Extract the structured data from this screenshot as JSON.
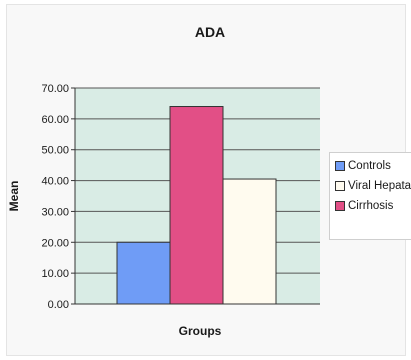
{
  "chart_data": {
    "type": "bar",
    "title": "ADA",
    "xlabel": "Groups",
    "ylabel": "Mean",
    "categories": [
      "Controls",
      "Viral Hepatatis",
      "Cirrhosis"
    ],
    "values": [
      20.0,
      64.0,
      40.5
    ],
    "colors": [
      "#6f9cf6",
      "#e24f86",
      "#fffbef"
    ],
    "ylim": [
      0,
      70
    ],
    "yticks": [
      "0.00",
      "10.00",
      "20.00",
      "30.00",
      "40.00",
      "50.00",
      "60.00",
      "70.00"
    ],
    "grid": true,
    "legend_position": "right",
    "plot_background": "#d9ece5",
    "legend": [
      {
        "label": "Controls",
        "color": "#6f9cf6"
      },
      {
        "label": "Viral Hepatatis",
        "color": "#fffbef"
      },
      {
        "label": "Cirrhosis",
        "color": "#e24f86"
      }
    ]
  }
}
